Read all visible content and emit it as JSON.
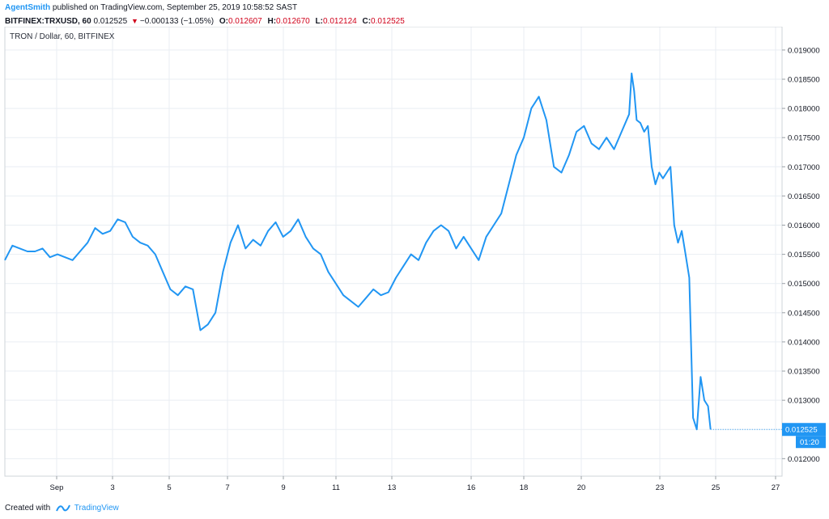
{
  "header": {
    "author": "AgentSmith",
    "published": "published on TradingView.com, September 25, 2019 10:58:52 SAST",
    "symbol": "BITFINEX:TRXUSD, 60",
    "last": "0.012525",
    "change": "−0.000133 (−1.05%)",
    "open_label": "O:",
    "open": "0.012607",
    "high_label": "H:",
    "high": "0.012670",
    "low_label": "L:",
    "low": "0.012124",
    "close_label": "C:",
    "close": "0.012525"
  },
  "footer": {
    "created_with": "Created with",
    "brand": "TradingView"
  },
  "colors": {
    "line": "#2196f3",
    "price_tag_bg": "#2196f3",
    "down": "#d0021b",
    "grid": "#e9eef3"
  },
  "chart_data": {
    "type": "line",
    "legend": "TRON / Dollar, 60, BITFINEX",
    "x_ticks": [
      "Sep",
      "3",
      "5",
      "7",
      "9",
      "11",
      "13",
      "16",
      "18",
      "20",
      "23",
      "25",
      "27"
    ],
    "y_ticks": [
      "0.012000",
      "0.012500",
      "0.013000",
      "0.013500",
      "0.014000",
      "0.014500",
      "0.015000",
      "0.015500",
      "0.016000",
      "0.016500",
      "0.017000",
      "0.017500",
      "0.018000",
      "0.018500",
      "0.019000"
    ],
    "ylim": [
      0.0117,
      0.0194
    ],
    "xlim": [
      0,
      31
    ],
    "last_price_label": "0.012525",
    "countdown_label": "01:20",
    "grid": true,
    "series": [
      {
        "x": [
          0.0,
          0.3,
          0.6,
          0.9,
          1.2,
          1.5,
          1.8,
          2.1,
          2.4,
          2.7,
          3.0,
          3.3,
          3.6,
          3.9,
          4.2,
          4.5,
          4.8,
          5.1,
          5.4,
          5.7,
          6.0,
          6.3,
          6.6,
          6.9,
          7.2,
          7.5,
          7.8,
          8.1,
          8.4,
          8.7,
          9.0,
          9.3,
          9.6,
          9.9,
          10.2,
          10.5,
          10.8,
          11.1,
          11.4,
          11.7,
          12.0,
          12.3,
          12.6,
          12.9,
          13.2,
          13.5,
          13.8,
          14.1,
          14.4,
          14.7,
          15.0,
          15.3,
          15.6,
          15.9,
          16.2,
          16.5,
          16.8,
          17.1,
          17.4,
          17.7,
          18.0,
          18.3,
          18.6,
          18.9,
          19.2,
          19.5,
          19.8,
          20.1,
          20.4,
          20.7,
          21.0,
          21.3,
          21.6,
          21.9,
          22.2,
          22.5,
          22.8,
          23.1,
          23.4,
          23.7,
          24.0,
          24.3,
          24.6,
          24.9,
          25.0,
          25.1,
          25.2,
          25.35,
          25.5,
          25.65,
          25.8,
          25.95,
          26.1,
          26.25,
          26.4,
          26.55,
          26.7,
          26.85,
          27.0,
          27.15,
          27.3,
          27.45,
          27.6,
          27.75,
          27.9,
          28.05,
          28.15
        ],
        "y": [
          0.0154,
          0.01565,
          0.0156,
          0.01555,
          0.01555,
          0.0156,
          0.01545,
          0.0155,
          0.01545,
          0.0154,
          0.01555,
          0.0157,
          0.01595,
          0.01585,
          0.0159,
          0.0161,
          0.01605,
          0.0158,
          0.0157,
          0.01565,
          0.0155,
          0.0152,
          0.0149,
          0.0148,
          0.01495,
          0.0149,
          0.0142,
          0.0143,
          0.0145,
          0.0152,
          0.0157,
          0.016,
          0.0156,
          0.01575,
          0.01565,
          0.0159,
          0.01605,
          0.0158,
          0.0159,
          0.0161,
          0.0158,
          0.0156,
          0.0155,
          0.0152,
          0.015,
          0.0148,
          0.0147,
          0.0146,
          0.01475,
          0.0149,
          0.0148,
          0.01485,
          0.0151,
          0.0153,
          0.0155,
          0.0154,
          0.0157,
          0.0159,
          0.016,
          0.0159,
          0.0156,
          0.0158,
          0.0156,
          0.0154,
          0.0158,
          0.016,
          0.0162,
          0.0167,
          0.0172,
          0.0175,
          0.018,
          0.0182,
          0.0178,
          0.017,
          0.0169,
          0.0172,
          0.0176,
          0.0177,
          0.0174,
          0.0173,
          0.0175,
          0.0173,
          0.0176,
          0.0179,
          0.0186,
          0.0183,
          0.0178,
          0.01775,
          0.0176,
          0.0177,
          0.017,
          0.0167,
          0.0169,
          0.0168,
          0.0169,
          0.017,
          0.016,
          0.0157,
          0.0159,
          0.0155,
          0.0151,
          0.0127,
          0.0125,
          0.0134,
          0.013,
          0.0129,
          0.0125
        ]
      }
    ]
  }
}
